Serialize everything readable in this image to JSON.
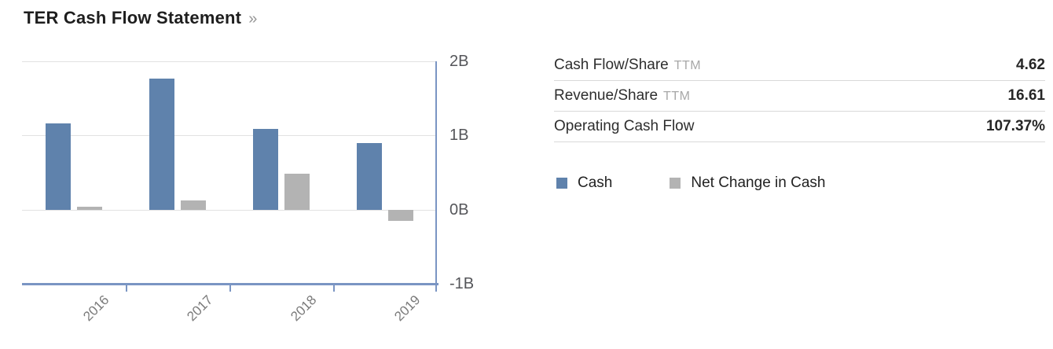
{
  "title": {
    "text": "TER Cash Flow Statement",
    "link_arrow": "»"
  },
  "colors": {
    "cash_series": "#5f82ac",
    "net_change_series": "#b3b3b3",
    "axis_line": "#7a95c3",
    "gridline": "#e2e2e2"
  },
  "chart_data": {
    "type": "bar",
    "title": "TER Cash Flow Statement",
    "categories": [
      "2016",
      "2017",
      "2018",
      "2019"
    ],
    "series": [
      {
        "name": "Cash",
        "color": "#5f82ac",
        "values": [
          1.16,
          1.77,
          1.09,
          0.9
        ]
      },
      {
        "name": "Net Change in Cash",
        "color": "#b3b3b3",
        "values": [
          0.04,
          0.12,
          0.48,
          -0.15
        ]
      }
    ],
    "unit": "B",
    "xlabel": "",
    "ylabel": "",
    "ylim": [
      -1,
      2
    ],
    "ytick_values": [
      2,
      1,
      0,
      -1
    ],
    "yticks": [
      "2B",
      "1B",
      "0B",
      "-1B"
    ],
    "grid": true,
    "y_axis_side": "right",
    "legend_position": "right-panel"
  },
  "stats": {
    "rows": [
      {
        "label": "Cash Flow/Share",
        "suffix": "TTM",
        "value": "4.62"
      },
      {
        "label": "Revenue/Share",
        "suffix": "TTM",
        "value": "16.61"
      },
      {
        "label": "Operating Cash Flow",
        "suffix": "",
        "value": "107.37%"
      }
    ]
  },
  "legend": {
    "items": [
      {
        "label": "Cash",
        "color": "#5f82ac"
      },
      {
        "label": "Net Change in Cash",
        "color": "#b3b3b3"
      }
    ]
  }
}
